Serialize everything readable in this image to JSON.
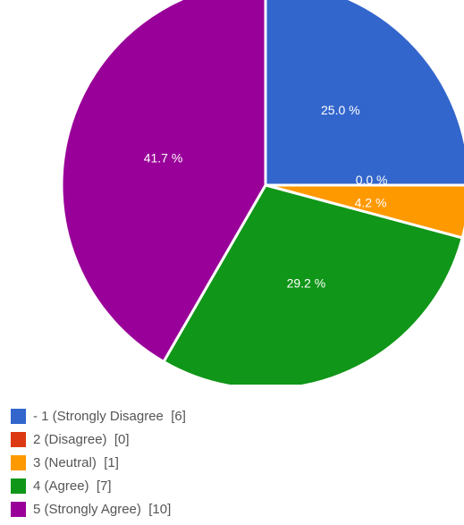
{
  "chart_data": {
    "type": "pie",
    "slices": [
      {
        "label": "- 1 (Strongly Disagree",
        "count": 6,
        "percent": 25.0,
        "percent_label": "25.0 %",
        "color": "#3366cc"
      },
      {
        "label": "2 (Disagree)",
        "count": 0,
        "percent": 0.0,
        "percent_label": "0.0 %",
        "color": "#dc3912"
      },
      {
        "label": "3 (Neutral)",
        "count": 1,
        "percent": 4.2,
        "percent_label": "4.2 %",
        "color": "#ff9900"
      },
      {
        "label": "4 (Agree)",
        "count": 7,
        "percent": 29.2,
        "percent_label": "29.2 %",
        "color": "#109618"
      },
      {
        "label": "5 (Strongly Agree)",
        "count": 10,
        "percent": 41.7,
        "percent_label": "41.7 %",
        "color": "#990099"
      }
    ],
    "legend": [
      {
        "text": "- 1 (Strongly Disagree  [6]"
      },
      {
        "text": "2 (Disagree)  [0]"
      },
      {
        "text": "3 (Neutral)  [1]"
      },
      {
        "text": "4 (Agree)  [7]"
      },
      {
        "text": "5 (Strongly Agree)  [10]"
      }
    ],
    "legend_position": "bottom"
  }
}
